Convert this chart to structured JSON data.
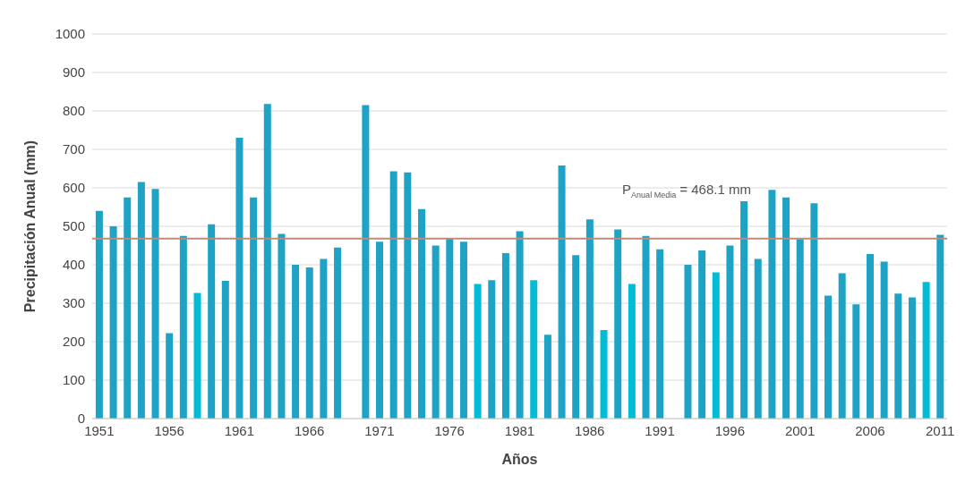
{
  "chart_data": {
    "type": "bar",
    "xlabel": "Años",
    "ylabel": "Precipitación Anual (mm)",
    "categories": [
      "1951",
      null,
      null,
      null,
      null,
      "1956",
      null,
      null,
      null,
      null,
      "1961",
      null,
      null,
      null,
      null,
      "1966",
      null,
      null,
      null,
      null,
      "1971",
      null,
      null,
      null,
      null,
      "1976",
      null,
      null,
      null,
      null,
      "1981",
      null,
      null,
      null,
      null,
      "1986",
      null,
      null,
      null,
      null,
      "1991",
      null,
      null,
      null,
      null,
      "1996",
      null,
      null,
      null,
      null,
      "2001",
      null,
      null,
      null,
      null,
      "2006",
      null,
      null,
      null,
      null,
      "2011"
    ],
    "values": [
      540,
      500,
      575,
      615,
      597,
      222,
      475,
      327,
      505,
      358,
      730,
      575,
      818,
      480,
      400,
      393,
      415,
      445,
      null,
      815,
      460,
      643,
      640,
      545,
      450,
      470,
      460,
      350,
      360,
      430,
      487,
      360,
      218,
      658,
      425,
      518,
      230,
      492,
      350,
      475,
      440,
      null,
      400,
      437,
      380,
      450,
      565,
      415,
      595,
      575,
      467,
      560,
      320,
      378,
      297,
      428,
      408,
      325,
      315,
      355,
      478
    ],
    "colors": [
      "#1fa3c4",
      "#1fa3c4",
      "#1fa3c4",
      "#1fa3c4",
      "#1fa3c4",
      "#1fa3c4",
      "#1fa3c4",
      "#00bcd4",
      "#1fa3c4",
      "#1fa3c4",
      "#1fa3c4",
      "#1fa3c4",
      "#1fa3c4",
      "#1fa3c4",
      "#1fa3c4",
      "#1fa3c4",
      "#1fa3c4",
      "#1fa3c4",
      "#1fa3c4",
      "#1fa3c4",
      "#1fa3c4",
      "#1fa3c4",
      "#1fa3c4",
      "#1fa3c4",
      "#1fa3c4",
      "#1fa3c4",
      "#1fa3c4",
      "#00bcd4",
      "#1fa3c4",
      "#1fa3c4",
      "#1fa3c4",
      "#00bcd4",
      "#1fa3c4",
      "#1fa3c4",
      "#1fa3c4",
      "#1fa3c4",
      "#00bcd4",
      "#1fa3c4",
      "#00bcd4",
      "#1fa3c4",
      "#1fa3c4",
      "#1fa3c4",
      "#1fa3c4",
      "#1fa3c4",
      "#00bcd4",
      "#1fa3c4",
      "#1fa3c4",
      "#1fa3c4",
      "#1fa3c4",
      "#1fa3c4",
      "#1fa3c4",
      "#1fa3c4",
      "#1fa3c4",
      "#1fa3c4",
      "#1fa3c4",
      "#1fa3c4",
      "#1fa3c4",
      "#1fa3c4",
      "#1fa3c4",
      "#00bcd4",
      "#1fa3c4"
    ],
    "ylim": [
      0,
      1000
    ],
    "yticks": [
      0,
      100,
      200,
      300,
      400,
      500,
      600,
      700,
      800,
      900,
      1000
    ],
    "grid": "y",
    "ref_lines": [
      {
        "axis": "y",
        "value": 468.1,
        "label": "P$_{Anual Media}$ = 468.1 mm",
        "color": "#c08a7a"
      }
    ]
  }
}
